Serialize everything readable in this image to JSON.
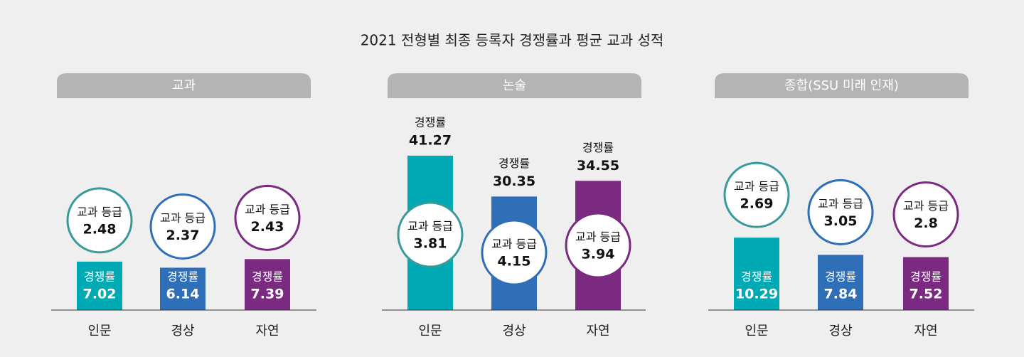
{
  "title": "2021 전형별 최종 등록자 경쟁률과 평균 교과 성적",
  "chart_data": [
    {
      "type": "bar",
      "title": "교과",
      "categories": [
        "인문",
        "경상",
        "자연"
      ],
      "series": [
        {
          "name": "경쟁률",
          "values": [
            7.02,
            6.14,
            7.39
          ]
        }
      ],
      "colors": [
        "#00aab5",
        "#2f6fb8",
        "#7b2a82"
      ],
      "label_position": "inside",
      "grade_label": "교과 등급",
      "grades": [
        2.48,
        2.37,
        2.43
      ],
      "grade_colors": [
        "#3a9a9a",
        "#2f6fb8",
        "#7b2a82"
      ]
    },
    {
      "type": "bar",
      "title": "논술",
      "categories": [
        "인문",
        "경상",
        "자연"
      ],
      "series": [
        {
          "name": "경쟁률",
          "values": [
            41.27,
            30.35,
            34.55
          ]
        }
      ],
      "colors": [
        "#00aab5",
        "#2f6fb8",
        "#7b2a82"
      ],
      "label_position": "above",
      "grade_label": "교과 등급",
      "grades": [
        3.81,
        4.15,
        3.94
      ],
      "grade_colors": [
        "#3a9a9a",
        "#2f6fb8",
        "#7b2a82"
      ]
    },
    {
      "type": "bar",
      "title": "종합(SSU 미래 인재)",
      "categories": [
        "인문",
        "경상",
        "자연"
      ],
      "series": [
        {
          "name": "경쟁률",
          "values": [
            10.29,
            7.84,
            7.52
          ]
        }
      ],
      "colors": [
        "#00aab5",
        "#2f6fb8",
        "#7b2a82"
      ],
      "label_position": "inside",
      "grade_label": "교과 등급",
      "grades": [
        2.69,
        3.05,
        2.8
      ],
      "grade_colors": [
        "#3a9a9a",
        "#2f6fb8",
        "#7b2a82"
      ]
    }
  ]
}
